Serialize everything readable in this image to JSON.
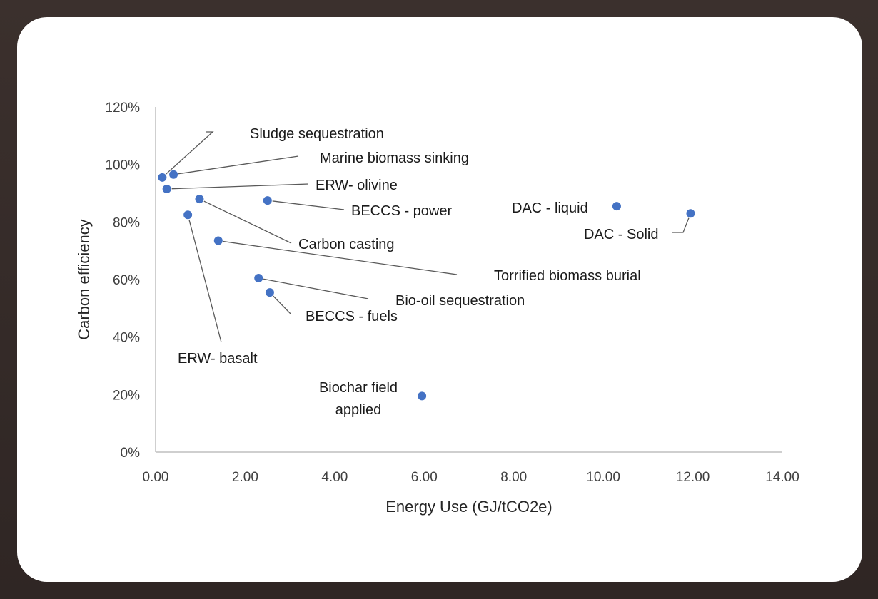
{
  "chart_data": {
    "type": "scatter",
    "title": "",
    "xlabel": "Energy Use (GJ/tCO2e)",
    "ylabel": "Carbon efficiency",
    "xlim": [
      0,
      14
    ],
    "ylim": [
      0,
      120
    ],
    "x_ticks": [
      "0.00",
      "2.00",
      "4.00",
      "6.00",
      "8.00",
      "10.00",
      "12.00",
      "14.00"
    ],
    "y_ticks": [
      "0%",
      "20%",
      "40%",
      "60%",
      "80%",
      "100%",
      "120%"
    ],
    "marker_color": "#4472c4",
    "leader_color": "#595959",
    "grid": false,
    "points": [
      {
        "label": "Sludge sequestration",
        "x": 0.15,
        "y": 95.5
      },
      {
        "label": "Marine biomass sinking",
        "x": 0.4,
        "y": 96.5
      },
      {
        "label": "ERW- olivine",
        "x": 0.25,
        "y": 91.5
      },
      {
        "label": "BECCS - power",
        "x": 2.5,
        "y": 87.5
      },
      {
        "label": "Carbon casting",
        "x": 0.98,
        "y": 88.0
      },
      {
        "label": "ERW- basalt",
        "x": 0.72,
        "y": 82.5
      },
      {
        "label": "Torrified biomass burial",
        "x": 1.4,
        "y": 73.5
      },
      {
        "label": "Bio-oil sequestration",
        "x": 2.3,
        "y": 60.5
      },
      {
        "label": "BECCS - fuels",
        "x": 2.55,
        "y": 55.5
      },
      {
        "label": "Biochar field applied",
        "label_lines": [
          "Biochar field",
          "applied"
        ],
        "x": 5.95,
        "y": 19.5
      },
      {
        "label": "DAC - liquid",
        "x": 10.3,
        "y": 85.5
      },
      {
        "label": "DAC - Solid",
        "x": 11.95,
        "y": 83.0
      }
    ]
  }
}
